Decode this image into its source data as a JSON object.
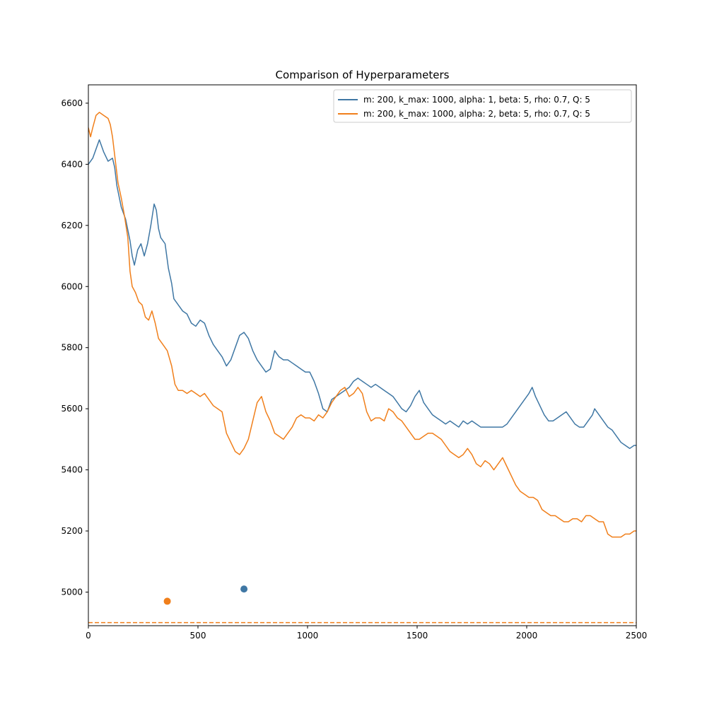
{
  "chart_data": {
    "type": "line",
    "title": "Comparison of Hyperparameters",
    "xlabel": "",
    "ylabel": "",
    "xlim": [
      0,
      2500
    ],
    "ylim": [
      4890,
      6660
    ],
    "xticks": [
      0,
      500,
      1000,
      1500,
      2000,
      2500
    ],
    "yticks": [
      5000,
      5200,
      5400,
      5600,
      5800,
      6000,
      6200,
      6400,
      6600
    ],
    "grid": false,
    "legend_position": "top-right",
    "series": [
      {
        "name": "m: 200, k_max: 1000, alpha: 1, beta: 5, rho: 0.7, Q: 5",
        "color": "#3f77a4",
        "points": [
          [
            0,
            6400
          ],
          [
            20,
            6420
          ],
          [
            40,
            6460
          ],
          [
            50,
            6480
          ],
          [
            70,
            6440
          ],
          [
            90,
            6410
          ],
          [
            110,
            6420
          ],
          [
            120,
            6390
          ],
          [
            130,
            6330
          ],
          [
            150,
            6260
          ],
          [
            170,
            6220
          ],
          [
            190,
            6150
          ],
          [
            200,
            6100
          ],
          [
            210,
            6070
          ],
          [
            225,
            6120
          ],
          [
            240,
            6140
          ],
          [
            255,
            6100
          ],
          [
            270,
            6140
          ],
          [
            285,
            6200
          ],
          [
            300,
            6270
          ],
          [
            310,
            6250
          ],
          [
            320,
            6190
          ],
          [
            330,
            6160
          ],
          [
            350,
            6140
          ],
          [
            365,
            6060
          ],
          [
            380,
            6010
          ],
          [
            390,
            5960
          ],
          [
            410,
            5940
          ],
          [
            430,
            5920
          ],
          [
            450,
            5910
          ],
          [
            470,
            5880
          ],
          [
            490,
            5870
          ],
          [
            510,
            5890
          ],
          [
            530,
            5880
          ],
          [
            550,
            5840
          ],
          [
            570,
            5810
          ],
          [
            590,
            5790
          ],
          [
            610,
            5770
          ],
          [
            630,
            5740
          ],
          [
            650,
            5760
          ],
          [
            670,
            5800
          ],
          [
            690,
            5840
          ],
          [
            710,
            5850
          ],
          [
            730,
            5830
          ],
          [
            750,
            5790
          ],
          [
            770,
            5760
          ],
          [
            790,
            5740
          ],
          [
            810,
            5720
          ],
          [
            830,
            5730
          ],
          [
            850,
            5790
          ],
          [
            870,
            5770
          ],
          [
            890,
            5760
          ],
          [
            910,
            5760
          ],
          [
            930,
            5750
          ],
          [
            950,
            5740
          ],
          [
            970,
            5730
          ],
          [
            990,
            5720
          ],
          [
            1010,
            5720
          ],
          [
            1030,
            5690
          ],
          [
            1050,
            5650
          ],
          [
            1070,
            5600
          ],
          [
            1090,
            5590
          ],
          [
            1110,
            5630
          ],
          [
            1130,
            5640
          ],
          [
            1150,
            5650
          ],
          [
            1170,
            5660
          ],
          [
            1190,
            5670
          ],
          [
            1210,
            5690
          ],
          [
            1230,
            5700
          ],
          [
            1250,
            5690
          ],
          [
            1270,
            5680
          ],
          [
            1290,
            5670
          ],
          [
            1310,
            5680
          ],
          [
            1330,
            5670
          ],
          [
            1350,
            5660
          ],
          [
            1370,
            5650
          ],
          [
            1390,
            5640
          ],
          [
            1410,
            5620
          ],
          [
            1430,
            5600
          ],
          [
            1450,
            5590
          ],
          [
            1470,
            5610
          ],
          [
            1490,
            5640
          ],
          [
            1510,
            5660
          ],
          [
            1530,
            5620
          ],
          [
            1550,
            5600
          ],
          [
            1570,
            5580
          ],
          [
            1590,
            5570
          ],
          [
            1610,
            5560
          ],
          [
            1630,
            5550
          ],
          [
            1650,
            5560
          ],
          [
            1670,
            5550
          ],
          [
            1690,
            5540
          ],
          [
            1710,
            5560
          ],
          [
            1730,
            5550
          ],
          [
            1750,
            5560
          ],
          [
            1770,
            5550
          ],
          [
            1790,
            5540
          ],
          [
            1810,
            5540
          ],
          [
            1830,
            5540
          ],
          [
            1850,
            5540
          ],
          [
            1870,
            5540
          ],
          [
            1890,
            5540
          ],
          [
            1910,
            5550
          ],
          [
            1930,
            5570
          ],
          [
            1950,
            5590
          ],
          [
            1970,
            5610
          ],
          [
            1990,
            5630
          ],
          [
            2010,
            5650
          ],
          [
            2025,
            5670
          ],
          [
            2040,
            5640
          ],
          [
            2060,
            5610
          ],
          [
            2080,
            5580
          ],
          [
            2100,
            5560
          ],
          [
            2120,
            5560
          ],
          [
            2140,
            5570
          ],
          [
            2160,
            5580
          ],
          [
            2180,
            5590
          ],
          [
            2200,
            5570
          ],
          [
            2220,
            5550
          ],
          [
            2240,
            5540
          ],
          [
            2260,
            5540
          ],
          [
            2280,
            5560
          ],
          [
            2300,
            5580
          ],
          [
            2310,
            5600
          ],
          [
            2330,
            5580
          ],
          [
            2350,
            5560
          ],
          [
            2370,
            5540
          ],
          [
            2390,
            5530
          ],
          [
            2410,
            5510
          ],
          [
            2430,
            5490
          ],
          [
            2450,
            5480
          ],
          [
            2470,
            5470
          ],
          [
            2490,
            5480
          ],
          [
            2500,
            5480
          ]
        ]
      },
      {
        "name": "m: 200, k_max: 1000, alpha: 2, beta: 5, rho: 0.7, Q: 5",
        "color": "#f07f1b",
        "points": [
          [
            0,
            6520
          ],
          [
            10,
            6490
          ],
          [
            20,
            6520
          ],
          [
            35,
            6560
          ],
          [
            50,
            6570
          ],
          [
            70,
            6560
          ],
          [
            90,
            6550
          ],
          [
            100,
            6530
          ],
          [
            110,
            6490
          ],
          [
            120,
            6430
          ],
          [
            135,
            6340
          ],
          [
            150,
            6290
          ],
          [
            165,
            6230
          ],
          [
            180,
            6160
          ],
          [
            190,
            6050
          ],
          [
            200,
            6000
          ],
          [
            215,
            5980
          ],
          [
            230,
            5950
          ],
          [
            245,
            5940
          ],
          [
            260,
            5900
          ],
          [
            275,
            5890
          ],
          [
            290,
            5920
          ],
          [
            305,
            5880
          ],
          [
            320,
            5830
          ],
          [
            340,
            5810
          ],
          [
            360,
            5790
          ],
          [
            380,
            5740
          ],
          [
            395,
            5680
          ],
          [
            410,
            5660
          ],
          [
            430,
            5660
          ],
          [
            450,
            5650
          ],
          [
            470,
            5660
          ],
          [
            490,
            5650
          ],
          [
            510,
            5640
          ],
          [
            530,
            5650
          ],
          [
            550,
            5630
          ],
          [
            570,
            5610
          ],
          [
            590,
            5600
          ],
          [
            610,
            5590
          ],
          [
            630,
            5520
          ],
          [
            650,
            5490
          ],
          [
            670,
            5460
          ],
          [
            690,
            5450
          ],
          [
            710,
            5470
          ],
          [
            730,
            5500
          ],
          [
            750,
            5560
          ],
          [
            770,
            5620
          ],
          [
            790,
            5640
          ],
          [
            810,
            5590
          ],
          [
            830,
            5560
          ],
          [
            850,
            5520
          ],
          [
            870,
            5510
          ],
          [
            890,
            5500
          ],
          [
            910,
            5520
          ],
          [
            930,
            5540
          ],
          [
            950,
            5570
          ],
          [
            970,
            5580
          ],
          [
            990,
            5570
          ],
          [
            1010,
            5570
          ],
          [
            1030,
            5560
          ],
          [
            1050,
            5580
          ],
          [
            1070,
            5570
          ],
          [
            1090,
            5590
          ],
          [
            1110,
            5620
          ],
          [
            1130,
            5640
          ],
          [
            1150,
            5660
          ],
          [
            1170,
            5670
          ],
          [
            1190,
            5640
          ],
          [
            1210,
            5650
          ],
          [
            1230,
            5670
          ],
          [
            1250,
            5650
          ],
          [
            1270,
            5590
          ],
          [
            1290,
            5560
          ],
          [
            1310,
            5570
          ],
          [
            1330,
            5570
          ],
          [
            1350,
            5560
          ],
          [
            1370,
            5600
          ],
          [
            1390,
            5590
          ],
          [
            1410,
            5570
          ],
          [
            1430,
            5560
          ],
          [
            1450,
            5540
          ],
          [
            1470,
            5520
          ],
          [
            1490,
            5500
          ],
          [
            1510,
            5500
          ],
          [
            1530,
            5510
          ],
          [
            1550,
            5520
          ],
          [
            1570,
            5520
          ],
          [
            1590,
            5510
          ],
          [
            1610,
            5500
          ],
          [
            1630,
            5480
          ],
          [
            1650,
            5460
          ],
          [
            1670,
            5450
          ],
          [
            1690,
            5440
          ],
          [
            1710,
            5450
          ],
          [
            1730,
            5470
          ],
          [
            1750,
            5450
          ],
          [
            1770,
            5420
          ],
          [
            1790,
            5410
          ],
          [
            1810,
            5430
          ],
          [
            1830,
            5420
          ],
          [
            1850,
            5400
          ],
          [
            1870,
            5420
          ],
          [
            1890,
            5440
          ],
          [
            1910,
            5410
          ],
          [
            1930,
            5380
          ],
          [
            1950,
            5350
          ],
          [
            1970,
            5330
          ],
          [
            1990,
            5320
          ],
          [
            2010,
            5310
          ],
          [
            2030,
            5310
          ],
          [
            2050,
            5300
          ],
          [
            2070,
            5270
          ],
          [
            2090,
            5260
          ],
          [
            2110,
            5250
          ],
          [
            2130,
            5250
          ],
          [
            2150,
            5240
          ],
          [
            2170,
            5230
          ],
          [
            2190,
            5230
          ],
          [
            2210,
            5240
          ],
          [
            2230,
            5240
          ],
          [
            2250,
            5230
          ],
          [
            2270,
            5250
          ],
          [
            2290,
            5250
          ],
          [
            2310,
            5240
          ],
          [
            2330,
            5230
          ],
          [
            2350,
            5230
          ],
          [
            2370,
            5190
          ],
          [
            2390,
            5180
          ],
          [
            2410,
            5180
          ],
          [
            2430,
            5180
          ],
          [
            2450,
            5190
          ],
          [
            2470,
            5190
          ],
          [
            2490,
            5200
          ],
          [
            2500,
            5200
          ]
        ]
      }
    ],
    "markers": [
      {
        "series": 0,
        "x": 710,
        "y": 5010,
        "color": "#3f77a4"
      },
      {
        "series": 1,
        "x": 360,
        "y": 4970,
        "color": "#f07f1b"
      }
    ],
    "reference_lines": [
      {
        "type": "horizontal",
        "y": 4900,
        "style": "dashed",
        "color": "#f07f1b"
      }
    ]
  }
}
